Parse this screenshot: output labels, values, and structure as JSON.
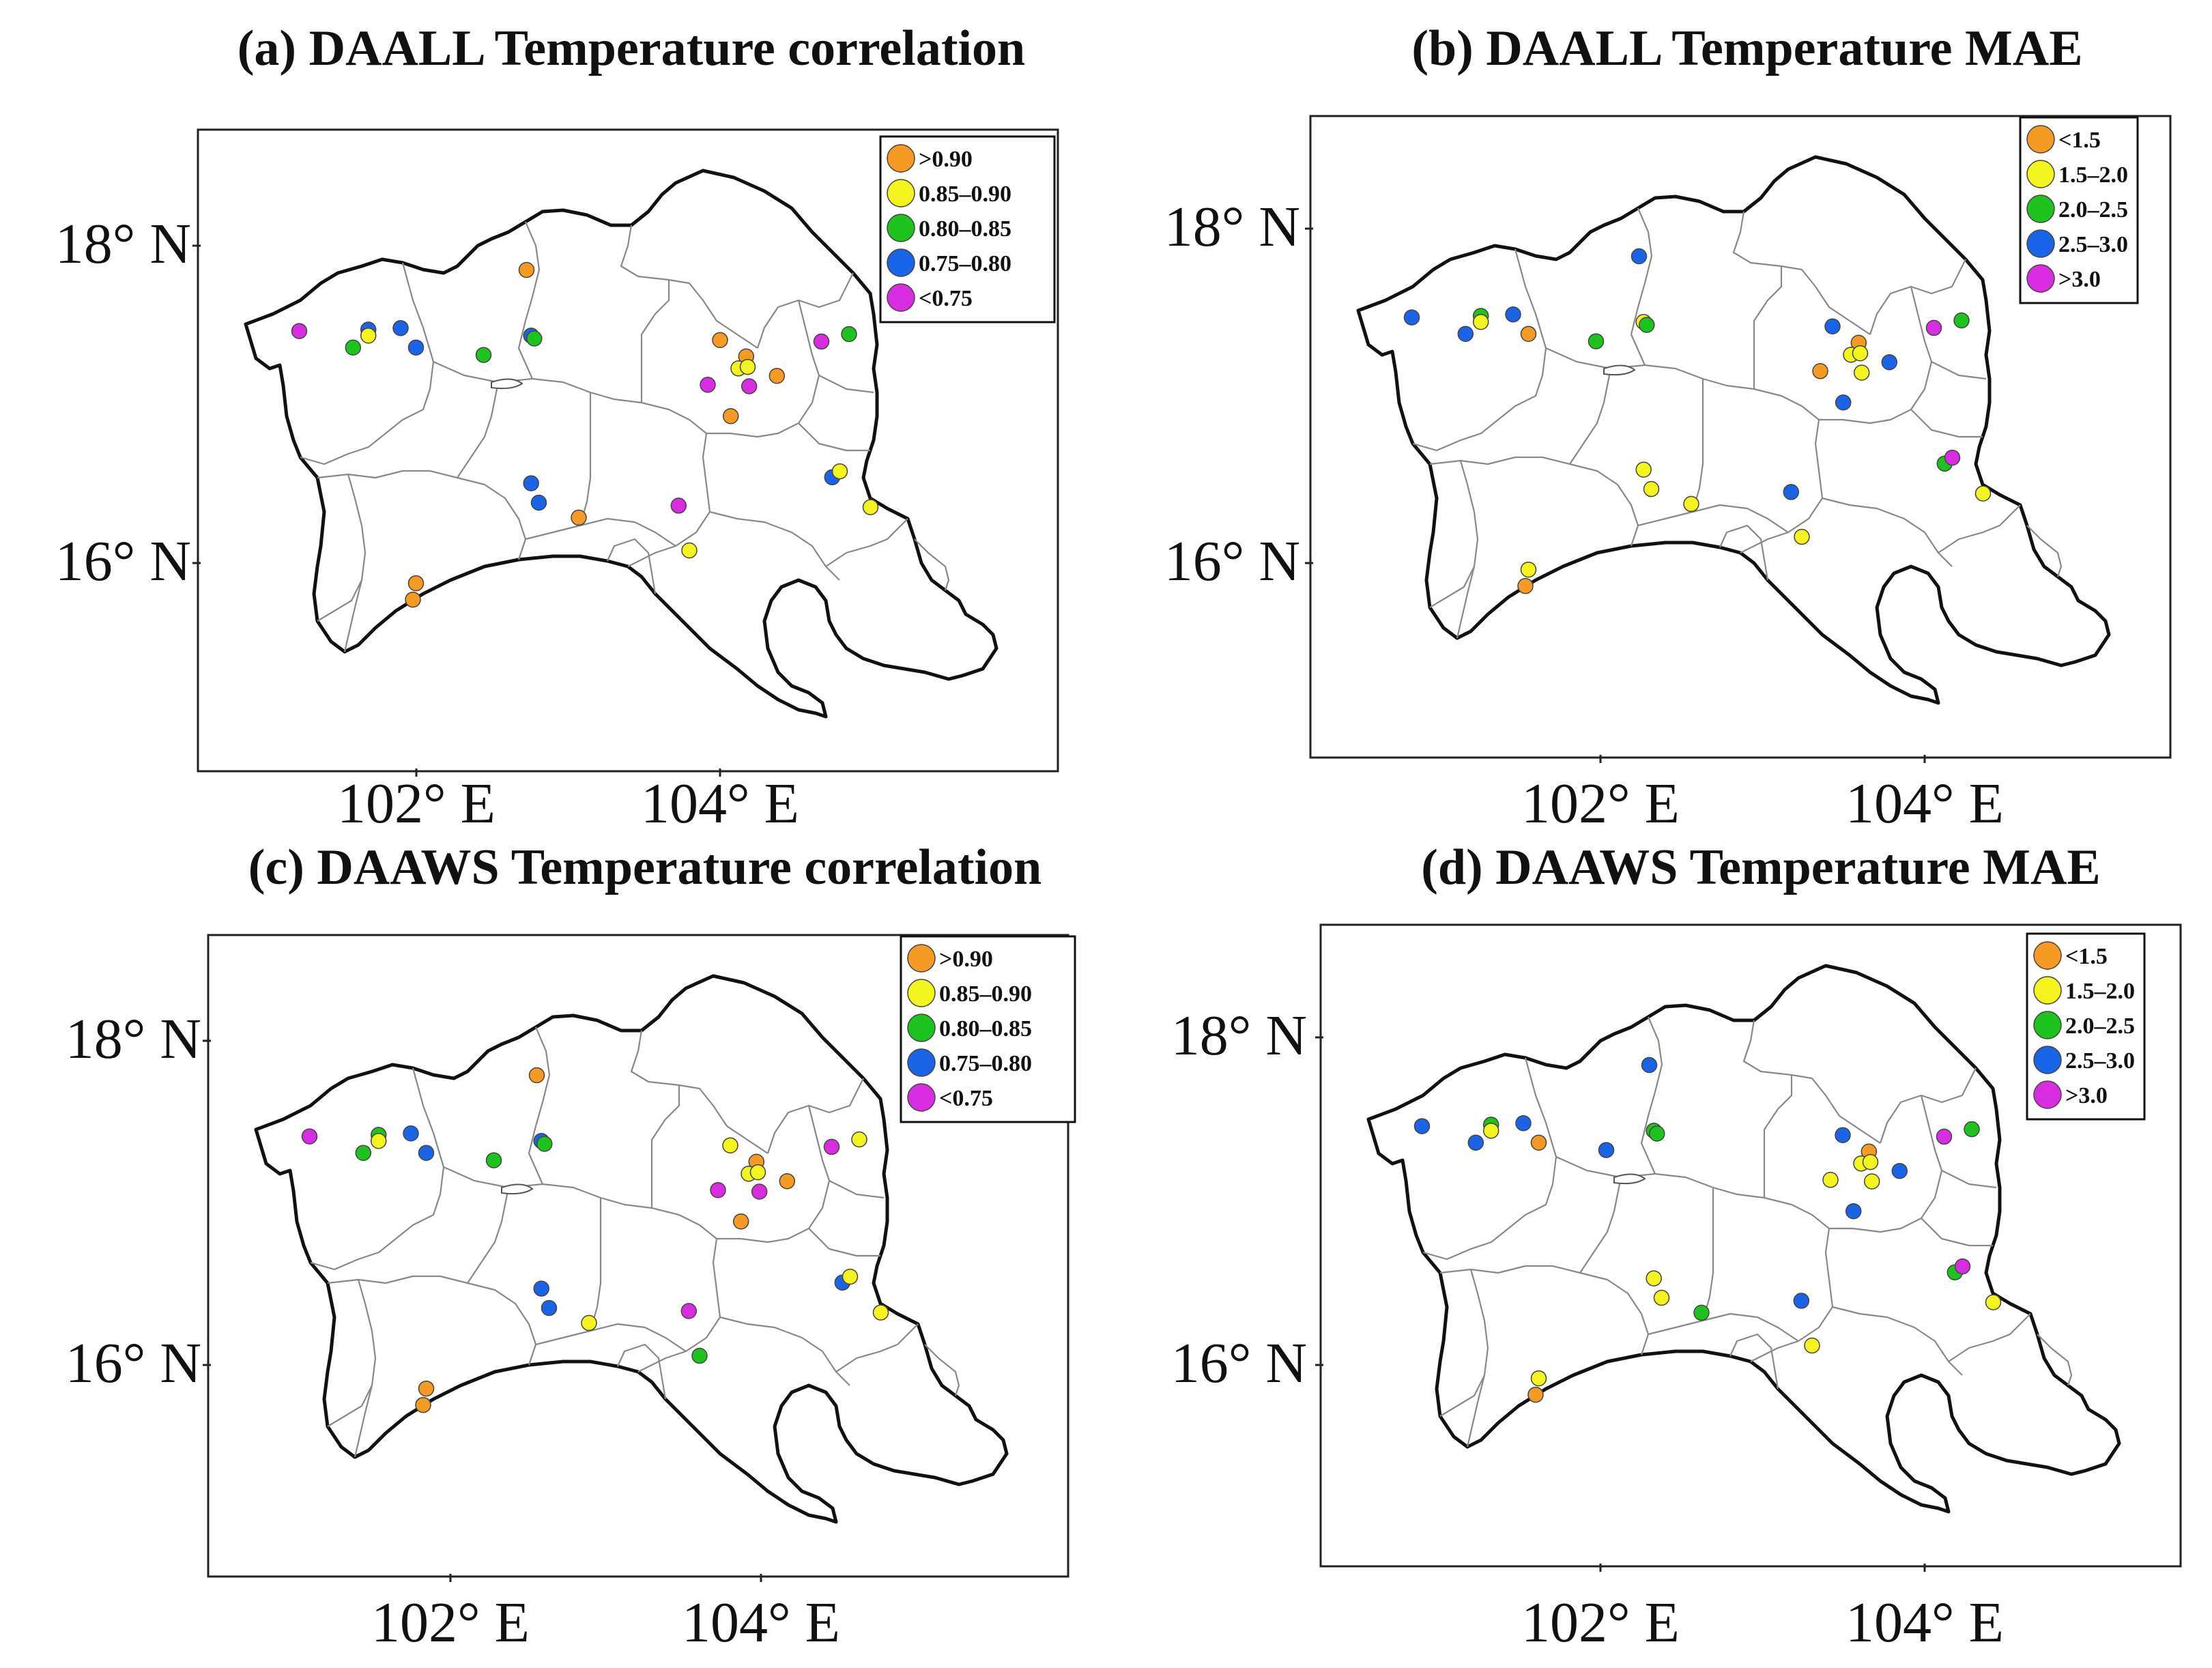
{
  "colors": {
    "orange": "#f59a23",
    "yellow": "#f3f31e",
    "green": "#1ec41e",
    "blue": "#1a64e8",
    "magenta": "#d82ce0"
  },
  "legends": {
    "corr": [
      {
        "label": ">0.90",
        "color": "orange"
      },
      {
        "label": "0.85–0.90",
        "color": "yellow"
      },
      {
        "label": "0.80–0.85",
        "color": "green"
      },
      {
        "label": "0.75–0.80",
        "color": "blue"
      },
      {
        "label": "<0.75",
        "color": "magenta"
      }
    ],
    "mae": [
      {
        "label": "<1.5",
        "color": "orange"
      },
      {
        "label": "1.5–2.0",
        "color": "yellow"
      },
      {
        "label": "2.0–2.5",
        "color": "green"
      },
      {
        "label": "2.5–3.0",
        "color": "blue"
      },
      {
        "label": ">3.0",
        "color": "magenta"
      }
    ]
  },
  "panels": [
    {
      "title": "(a) DAALL Temperature correlation",
      "legend": "corr",
      "ticks": {
        "lat": [
          "18° N",
          "16° N"
        ],
        "lon": [
          "102° E",
          "104° E"
        ]
      },
      "stations": [
        {
          "lon": 101.26,
          "lat": 17.55,
          "cls": "magenta"
        },
        {
          "lon": 101.61,
          "lat": 17.44,
          "cls": "green"
        },
        {
          "lon": 101.71,
          "lat": 17.56,
          "cls": "blue"
        },
        {
          "lon": 101.71,
          "lat": 17.52,
          "cls": "yellow"
        },
        {
          "lon": 101.92,
          "lat": 17.57,
          "cls": "blue"
        },
        {
          "lon": 102.02,
          "lat": 17.44,
          "cls": "blue"
        },
        {
          "lon": 102.46,
          "lat": 17.39,
          "cls": "green"
        },
        {
          "lon": 102.77,
          "lat": 17.52,
          "cls": "blue"
        },
        {
          "lon": 102.79,
          "lat": 17.5,
          "cls": "green"
        },
        {
          "lon": 102.74,
          "lat": 17.96,
          "cls": "orange"
        },
        {
          "lon": 104.0,
          "lat": 17.49,
          "cls": "orange"
        },
        {
          "lon": 104.17,
          "lat": 17.38,
          "cls": "orange"
        },
        {
          "lon": 104.12,
          "lat": 17.3,
          "cls": "yellow"
        },
        {
          "lon": 104.18,
          "lat": 17.31,
          "cls": "yellow"
        },
        {
          "lon": 103.92,
          "lat": 17.19,
          "cls": "magenta"
        },
        {
          "lon": 104.19,
          "lat": 17.18,
          "cls": "magenta"
        },
        {
          "lon": 104.37,
          "lat": 17.25,
          "cls": "orange"
        },
        {
          "lon": 104.07,
          "lat": 16.98,
          "cls": "orange"
        },
        {
          "lon": 104.66,
          "lat": 17.48,
          "cls": "magenta"
        },
        {
          "lon": 104.84,
          "lat": 17.53,
          "cls": "green"
        },
        {
          "lon": 104.73,
          "lat": 16.57,
          "cls": "blue"
        },
        {
          "lon": 104.78,
          "lat": 16.61,
          "cls": "yellow"
        },
        {
          "lon": 104.98,
          "lat": 16.37,
          "cls": "yellow"
        },
        {
          "lon": 102.77,
          "lat": 16.53,
          "cls": "blue"
        },
        {
          "lon": 102.82,
          "lat": 16.4,
          "cls": "blue"
        },
        {
          "lon": 103.08,
          "lat": 16.3,
          "cls": "orange"
        },
        {
          "lon": 103.73,
          "lat": 16.38,
          "cls": "magenta"
        },
        {
          "lon": 103.8,
          "lat": 16.08,
          "cls": "yellow"
        },
        {
          "lon": 102.02,
          "lat": 15.86,
          "cls": "orange"
        },
        {
          "lon": 102.0,
          "lat": 15.75,
          "cls": "orange"
        }
      ]
    },
    {
      "title": "(b) DAALL Temperature MAE",
      "legend": "mae",
      "ticks": {
        "lat": [
          "18° N",
          "16° N"
        ],
        "lon": [
          "102° E",
          "104° E"
        ]
      },
      "stations": [
        {
          "lon": 101.26,
          "lat": 17.55,
          "cls": "blue"
        },
        {
          "lon": 101.61,
          "lat": 17.44,
          "cls": "blue"
        },
        {
          "lon": 101.71,
          "lat": 17.56,
          "cls": "green"
        },
        {
          "lon": 101.71,
          "lat": 17.52,
          "cls": "yellow"
        },
        {
          "lon": 101.92,
          "lat": 17.57,
          "cls": "blue"
        },
        {
          "lon": 102.02,
          "lat": 17.44,
          "cls": "orange"
        },
        {
          "lon": 102.46,
          "lat": 17.39,
          "cls": "green"
        },
        {
          "lon": 102.77,
          "lat": 17.52,
          "cls": "yellow"
        },
        {
          "lon": 102.79,
          "lat": 17.5,
          "cls": "green"
        },
        {
          "lon": 102.74,
          "lat": 17.96,
          "cls": "blue"
        },
        {
          "lon": 104.0,
          "lat": 17.49,
          "cls": "blue"
        },
        {
          "lon": 104.17,
          "lat": 17.38,
          "cls": "orange"
        },
        {
          "lon": 104.12,
          "lat": 17.3,
          "cls": "yellow"
        },
        {
          "lon": 104.18,
          "lat": 17.31,
          "cls": "yellow"
        },
        {
          "lon": 103.92,
          "lat": 17.19,
          "cls": "orange"
        },
        {
          "lon": 104.19,
          "lat": 17.18,
          "cls": "yellow"
        },
        {
          "lon": 104.37,
          "lat": 17.25,
          "cls": "blue"
        },
        {
          "lon": 104.07,
          "lat": 16.98,
          "cls": "blue"
        },
        {
          "lon": 104.66,
          "lat": 17.48,
          "cls": "magenta"
        },
        {
          "lon": 104.84,
          "lat": 17.53,
          "cls": "green"
        },
        {
          "lon": 104.73,
          "lat": 16.57,
          "cls": "green"
        },
        {
          "lon": 104.78,
          "lat": 16.61,
          "cls": "magenta"
        },
        {
          "lon": 104.98,
          "lat": 16.37,
          "cls": "yellow"
        },
        {
          "lon": 102.77,
          "lat": 16.53,
          "cls": "yellow"
        },
        {
          "lon": 102.82,
          "lat": 16.4,
          "cls": "yellow"
        },
        {
          "lon": 103.08,
          "lat": 16.3,
          "cls": "yellow"
        },
        {
          "lon": 103.73,
          "lat": 16.38,
          "cls": "blue"
        },
        {
          "lon": 103.8,
          "lat": 16.08,
          "cls": "yellow"
        },
        {
          "lon": 102.02,
          "lat": 15.86,
          "cls": "yellow"
        },
        {
          "lon": 102.0,
          "lat": 15.75,
          "cls": "orange"
        }
      ]
    },
    {
      "title": "(c) DAAWS Temperature correlation",
      "legend": "corr",
      "ticks": {
        "lat": [
          "18° N",
          "16° N"
        ],
        "lon": [
          "102° E",
          "104° E"
        ]
      },
      "stations": [
        {
          "lon": 101.26,
          "lat": 17.55,
          "cls": "magenta"
        },
        {
          "lon": 101.61,
          "lat": 17.44,
          "cls": "green"
        },
        {
          "lon": 101.71,
          "lat": 17.56,
          "cls": "green"
        },
        {
          "lon": 101.71,
          "lat": 17.52,
          "cls": "yellow"
        },
        {
          "lon": 101.92,
          "lat": 17.57,
          "cls": "blue"
        },
        {
          "lon": 102.02,
          "lat": 17.44,
          "cls": "blue"
        },
        {
          "lon": 102.46,
          "lat": 17.39,
          "cls": "green"
        },
        {
          "lon": 102.77,
          "lat": 17.52,
          "cls": "blue"
        },
        {
          "lon": 102.79,
          "lat": 17.5,
          "cls": "green"
        },
        {
          "lon": 102.74,
          "lat": 17.96,
          "cls": "orange"
        },
        {
          "lon": 104.0,
          "lat": 17.49,
          "cls": "yellow"
        },
        {
          "lon": 104.17,
          "lat": 17.38,
          "cls": "orange"
        },
        {
          "lon": 104.12,
          "lat": 17.3,
          "cls": "yellow"
        },
        {
          "lon": 104.18,
          "lat": 17.31,
          "cls": "yellow"
        },
        {
          "lon": 103.92,
          "lat": 17.19,
          "cls": "magenta"
        },
        {
          "lon": 104.19,
          "lat": 17.18,
          "cls": "magenta"
        },
        {
          "lon": 104.37,
          "lat": 17.25,
          "cls": "orange"
        },
        {
          "lon": 104.07,
          "lat": 16.98,
          "cls": "orange"
        },
        {
          "lon": 104.66,
          "lat": 17.48,
          "cls": "magenta"
        },
        {
          "lon": 104.84,
          "lat": 17.53,
          "cls": "yellow"
        },
        {
          "lon": 104.73,
          "lat": 16.57,
          "cls": "blue"
        },
        {
          "lon": 104.78,
          "lat": 16.61,
          "cls": "yellow"
        },
        {
          "lon": 104.98,
          "lat": 16.37,
          "cls": "yellow"
        },
        {
          "lon": 102.77,
          "lat": 16.53,
          "cls": "blue"
        },
        {
          "lon": 102.82,
          "lat": 16.4,
          "cls": "blue"
        },
        {
          "lon": 103.08,
          "lat": 16.3,
          "cls": "yellow"
        },
        {
          "lon": 103.73,
          "lat": 16.38,
          "cls": "magenta"
        },
        {
          "lon": 103.8,
          "lat": 16.08,
          "cls": "green"
        },
        {
          "lon": 102.02,
          "lat": 15.86,
          "cls": "orange"
        },
        {
          "lon": 102.0,
          "lat": 15.75,
          "cls": "orange"
        }
      ]
    },
    {
      "title": "(d) DAAWS Temperature MAE",
      "legend": "mae",
      "ticks": {
        "lat": [
          "18° N",
          "16° N"
        ],
        "lon": [
          "102° E",
          "104° E"
        ]
      },
      "stations": [
        {
          "lon": 101.26,
          "lat": 17.55,
          "cls": "blue"
        },
        {
          "lon": 101.61,
          "lat": 17.44,
          "cls": "blue"
        },
        {
          "lon": 101.71,
          "lat": 17.56,
          "cls": "green"
        },
        {
          "lon": 101.71,
          "lat": 17.52,
          "cls": "yellow"
        },
        {
          "lon": 101.92,
          "lat": 17.57,
          "cls": "blue"
        },
        {
          "lon": 102.02,
          "lat": 17.44,
          "cls": "orange"
        },
        {
          "lon": 102.46,
          "lat": 17.39,
          "cls": "blue"
        },
        {
          "lon": 102.77,
          "lat": 17.52,
          "cls": "green"
        },
        {
          "lon": 102.79,
          "lat": 17.5,
          "cls": "green"
        },
        {
          "lon": 102.74,
          "lat": 17.96,
          "cls": "blue"
        },
        {
          "lon": 104.0,
          "lat": 17.49,
          "cls": "blue"
        },
        {
          "lon": 104.17,
          "lat": 17.38,
          "cls": "orange"
        },
        {
          "lon": 104.12,
          "lat": 17.3,
          "cls": "yellow"
        },
        {
          "lon": 104.18,
          "lat": 17.31,
          "cls": "yellow"
        },
        {
          "lon": 103.92,
          "lat": 17.19,
          "cls": "yellow"
        },
        {
          "lon": 104.19,
          "lat": 17.18,
          "cls": "yellow"
        },
        {
          "lon": 104.37,
          "lat": 17.25,
          "cls": "blue"
        },
        {
          "lon": 104.07,
          "lat": 16.98,
          "cls": "blue"
        },
        {
          "lon": 104.66,
          "lat": 17.48,
          "cls": "magenta"
        },
        {
          "lon": 104.84,
          "lat": 17.53,
          "cls": "green"
        },
        {
          "lon": 104.73,
          "lat": 16.57,
          "cls": "green"
        },
        {
          "lon": 104.78,
          "lat": 16.61,
          "cls": "magenta"
        },
        {
          "lon": 104.98,
          "lat": 16.37,
          "cls": "yellow"
        },
        {
          "lon": 102.77,
          "lat": 16.53,
          "cls": "yellow"
        },
        {
          "lon": 102.82,
          "lat": 16.4,
          "cls": "yellow"
        },
        {
          "lon": 103.08,
          "lat": 16.3,
          "cls": "green"
        },
        {
          "lon": 103.73,
          "lat": 16.38,
          "cls": "blue"
        },
        {
          "lon": 103.8,
          "lat": 16.08,
          "cls": "yellow"
        },
        {
          "lon": 102.02,
          "lat": 15.86,
          "cls": "yellow"
        },
        {
          "lon": 102.0,
          "lat": 15.75,
          "cls": "orange"
        }
      ]
    }
  ]
}
